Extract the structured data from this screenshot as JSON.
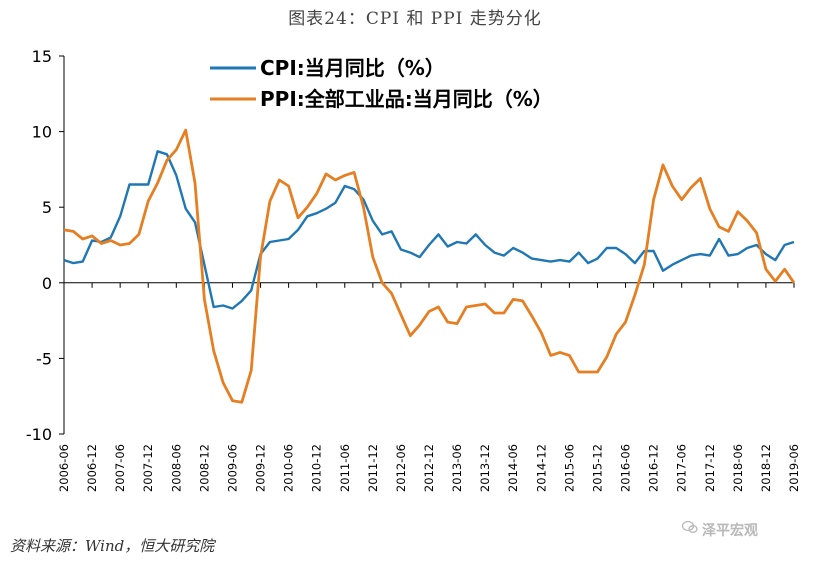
{
  "header": {
    "title": "图表24：CPI 和 PPI 走势分化"
  },
  "footer": {
    "source": "资料来源：Wind，恒大研究院",
    "watermark": "泽平宏观"
  },
  "icons": {
    "watermark": "wechat-bubble-icon"
  },
  "chart_data": {
    "type": "line",
    "title": "图表24：CPI 和 PPI 走势分化",
    "xlabel": "",
    "ylabel": "",
    "ylim": [
      -10,
      15
    ],
    "yticks": [
      15,
      10,
      5,
      0,
      -5,
      -10
    ],
    "xlim": [
      "2006-06",
      "2019-06"
    ],
    "xticks": [
      "2006-06",
      "2006-12",
      "2007-06",
      "2007-12",
      "2008-06",
      "2008-12",
      "2009-06",
      "2009-12",
      "2010-06",
      "2010-12",
      "2011-06",
      "2011-12",
      "2012-06",
      "2012-12",
      "2013-06",
      "2013-12",
      "2014-06",
      "2014-12",
      "2015-06",
      "2015-12",
      "2016-06",
      "2016-12",
      "2017-06",
      "2017-12",
      "2018-06",
      "2018-12",
      "2019-06"
    ],
    "grid": false,
    "legend": "top-left",
    "series": [
      {
        "name": "CPI:当月同比（%）",
        "color": "#1f77b4",
        "points": [
          [
            "2006-06",
            1.5
          ],
          [
            "2006-08",
            1.3
          ],
          [
            "2006-10",
            1.4
          ],
          [
            "2006-12",
            2.8
          ],
          [
            "2007-02",
            2.7
          ],
          [
            "2007-04",
            3.0
          ],
          [
            "2007-06",
            4.4
          ],
          [
            "2007-08",
            6.5
          ],
          [
            "2007-10",
            6.5
          ],
          [
            "2007-12",
            6.5
          ],
          [
            "2008-02",
            8.7
          ],
          [
            "2008-04",
            8.5
          ],
          [
            "2008-06",
            7.1
          ],
          [
            "2008-08",
            4.9
          ],
          [
            "2008-10",
            4.0
          ],
          [
            "2008-12",
            1.2
          ],
          [
            "2009-02",
            -1.6
          ],
          [
            "2009-04",
            -1.5
          ],
          [
            "2009-06",
            -1.7
          ],
          [
            "2009-08",
            -1.2
          ],
          [
            "2009-10",
            -0.5
          ],
          [
            "2009-12",
            1.9
          ],
          [
            "2010-02",
            2.7
          ],
          [
            "2010-04",
            2.8
          ],
          [
            "2010-06",
            2.9
          ],
          [
            "2010-08",
            3.5
          ],
          [
            "2010-10",
            4.4
          ],
          [
            "2010-12",
            4.6
          ],
          [
            "2011-02",
            4.9
          ],
          [
            "2011-04",
            5.3
          ],
          [
            "2011-06",
            6.4
          ],
          [
            "2011-08",
            6.2
          ],
          [
            "2011-10",
            5.5
          ],
          [
            "2011-12",
            4.1
          ],
          [
            "2012-02",
            3.2
          ],
          [
            "2012-04",
            3.4
          ],
          [
            "2012-06",
            2.2
          ],
          [
            "2012-08",
            2.0
          ],
          [
            "2012-10",
            1.7
          ],
          [
            "2012-12",
            2.5
          ],
          [
            "2013-02",
            3.2
          ],
          [
            "2013-04",
            2.4
          ],
          [
            "2013-06",
            2.7
          ],
          [
            "2013-08",
            2.6
          ],
          [
            "2013-10",
            3.2
          ],
          [
            "2013-12",
            2.5
          ],
          [
            "2014-02",
            2.0
          ],
          [
            "2014-04",
            1.8
          ],
          [
            "2014-06",
            2.3
          ],
          [
            "2014-08",
            2.0
          ],
          [
            "2014-10",
            1.6
          ],
          [
            "2014-12",
            1.5
          ],
          [
            "2015-02",
            1.4
          ],
          [
            "2015-04",
            1.5
          ],
          [
            "2015-06",
            1.4
          ],
          [
            "2015-08",
            2.0
          ],
          [
            "2015-10",
            1.3
          ],
          [
            "2015-12",
            1.6
          ],
          [
            "2016-02",
            2.3
          ],
          [
            "2016-04",
            2.3
          ],
          [
            "2016-06",
            1.9
          ],
          [
            "2016-08",
            1.3
          ],
          [
            "2016-10",
            2.1
          ],
          [
            "2016-12",
            2.1
          ],
          [
            "2017-02",
            0.8
          ],
          [
            "2017-04",
            1.2
          ],
          [
            "2017-06",
            1.5
          ],
          [
            "2017-08",
            1.8
          ],
          [
            "2017-10",
            1.9
          ],
          [
            "2017-12",
            1.8
          ],
          [
            "2018-02",
            2.9
          ],
          [
            "2018-04",
            1.8
          ],
          [
            "2018-06",
            1.9
          ],
          [
            "2018-08",
            2.3
          ],
          [
            "2018-10",
            2.5
          ],
          [
            "2018-12",
            1.9
          ],
          [
            "2019-02",
            1.5
          ],
          [
            "2019-04",
            2.5
          ],
          [
            "2019-06",
            2.7
          ]
        ]
      },
      {
        "name": "PPI:全部工业品:当月同比（%）",
        "color": "#e67e22",
        "points": [
          [
            "2006-06",
            3.5
          ],
          [
            "2006-08",
            3.4
          ],
          [
            "2006-10",
            2.9
          ],
          [
            "2006-12",
            3.1
          ],
          [
            "2007-02",
            2.6
          ],
          [
            "2007-04",
            2.8
          ],
          [
            "2007-06",
            2.5
          ],
          [
            "2007-08",
            2.6
          ],
          [
            "2007-10",
            3.2
          ],
          [
            "2007-12",
            5.4
          ],
          [
            "2008-02",
            6.6
          ],
          [
            "2008-04",
            8.1
          ],
          [
            "2008-06",
            8.8
          ],
          [
            "2008-08",
            10.1
          ],
          [
            "2008-10",
            6.6
          ],
          [
            "2008-12",
            -1.1
          ],
          [
            "2009-02",
            -4.5
          ],
          [
            "2009-04",
            -6.6
          ],
          [
            "2009-06",
            -7.8
          ],
          [
            "2009-08",
            -7.9
          ],
          [
            "2009-10",
            -5.8
          ],
          [
            "2009-12",
            1.7
          ],
          [
            "2010-02",
            5.4
          ],
          [
            "2010-04",
            6.8
          ],
          [
            "2010-06",
            6.4
          ],
          [
            "2010-08",
            4.3
          ],
          [
            "2010-10",
            5.0
          ],
          [
            "2010-12",
            5.9
          ],
          [
            "2011-02",
            7.2
          ],
          [
            "2011-04",
            6.8
          ],
          [
            "2011-06",
            7.1
          ],
          [
            "2011-08",
            7.3
          ],
          [
            "2011-10",
            5.0
          ],
          [
            "2011-12",
            1.7
          ],
          [
            "2012-02",
            0.0
          ],
          [
            "2012-04",
            -0.7
          ],
          [
            "2012-06",
            -2.1
          ],
          [
            "2012-08",
            -3.5
          ],
          [
            "2012-10",
            -2.8
          ],
          [
            "2012-12",
            -1.9
          ],
          [
            "2013-02",
            -1.6
          ],
          [
            "2013-04",
            -2.6
          ],
          [
            "2013-06",
            -2.7
          ],
          [
            "2013-08",
            -1.6
          ],
          [
            "2013-10",
            -1.5
          ],
          [
            "2013-12",
            -1.4
          ],
          [
            "2014-02",
            -2.0
          ],
          [
            "2014-04",
            -2.0
          ],
          [
            "2014-06",
            -1.1
          ],
          [
            "2014-08",
            -1.2
          ],
          [
            "2014-10",
            -2.2
          ],
          [
            "2014-12",
            -3.3
          ],
          [
            "2015-02",
            -4.8
          ],
          [
            "2015-04",
            -4.6
          ],
          [
            "2015-06",
            -4.8
          ],
          [
            "2015-08",
            -5.9
          ],
          [
            "2015-10",
            -5.9
          ],
          [
            "2015-12",
            -5.9
          ],
          [
            "2016-02",
            -4.9
          ],
          [
            "2016-04",
            -3.4
          ],
          [
            "2016-06",
            -2.6
          ],
          [
            "2016-08",
            -0.8
          ],
          [
            "2016-10",
            1.2
          ],
          [
            "2016-12",
            5.5
          ],
          [
            "2017-02",
            7.8
          ],
          [
            "2017-04",
            6.4
          ],
          [
            "2017-06",
            5.5
          ],
          [
            "2017-08",
            6.3
          ],
          [
            "2017-10",
            6.9
          ],
          [
            "2017-12",
            4.9
          ],
          [
            "2018-02",
            3.7
          ],
          [
            "2018-04",
            3.4
          ],
          [
            "2018-06",
            4.7
          ],
          [
            "2018-08",
            4.1
          ],
          [
            "2018-10",
            3.3
          ],
          [
            "2018-12",
            0.9
          ],
          [
            "2019-02",
            0.1
          ],
          [
            "2019-04",
            0.9
          ],
          [
            "2019-06",
            0.0
          ]
        ]
      }
    ]
  }
}
